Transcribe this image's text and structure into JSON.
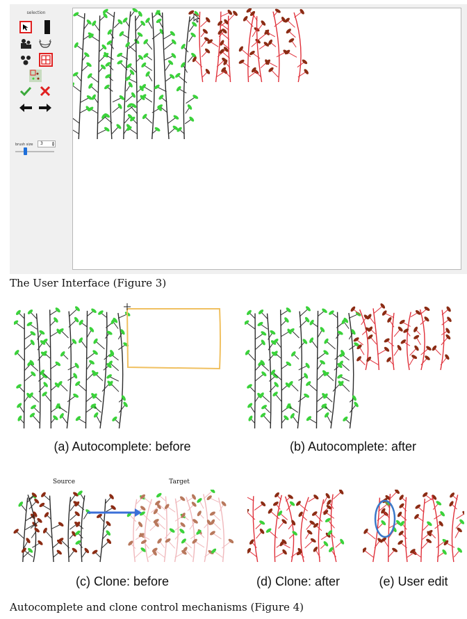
{
  "figure3": {
    "caption": "The User Interface (Figure 3)",
    "panel_title": "selection",
    "tools": [
      {
        "name": "select-tool-button",
        "icon": "cursor-arrow-icon",
        "selected": true
      },
      {
        "name": "brush-tool-button",
        "icon": "black-bar-icon",
        "selected": false
      },
      {
        "name": "figure-tool-button",
        "icon": "figures-icon",
        "selected": false
      },
      {
        "name": "lasso-tool-button",
        "icon": "lasso-icon",
        "selected": false
      },
      {
        "name": "cluster-tool-button",
        "icon": "cluster-icon",
        "selected": false
      },
      {
        "name": "grid-tool-button",
        "icon": "grid-icon",
        "selected": true
      },
      {
        "name": "texture-tool-button",
        "icon": "texture-swatch-icon",
        "selected": false
      },
      {
        "name": "accept-button",
        "icon": "checkmark-icon",
        "selected": false
      },
      {
        "name": "reject-button",
        "icon": "x-icon",
        "selected": false
      },
      {
        "name": "previous-button",
        "icon": "left-arrow-icon",
        "selected": false
      },
      {
        "name": "next-button",
        "icon": "right-arrow-icon",
        "selected": false
      }
    ],
    "brush_label": "brush size",
    "brush_value": "3",
    "brush_slider_fraction": 0.3
  },
  "figure4": {
    "caption": "Autocomplete and clone control mechanisms (Figure 4)",
    "panels": [
      {
        "label": "(a) Autocomplete: before"
      },
      {
        "label": "(b) Autocomplete: after"
      },
      {
        "label": "(c) Clone: before",
        "source_label": "Source",
        "target_label": "Target"
      },
      {
        "label": "(d) Clone: after"
      },
      {
        "label": "(e) User edit"
      }
    ]
  },
  "colors": {
    "leaf_green": "#3bd23b",
    "leaf_brown": "#8b2c14",
    "branch_dark": "#2b2b2b",
    "branch_red": "#e0303a",
    "branch_pink": "#f0b8bc",
    "selection_orange": "#f0c060",
    "arrow_blue": "#3b6fd8",
    "ellipse_blue": "#3a78c8",
    "tool_selected": "#e02020",
    "slider": "#1e6fd9"
  }
}
